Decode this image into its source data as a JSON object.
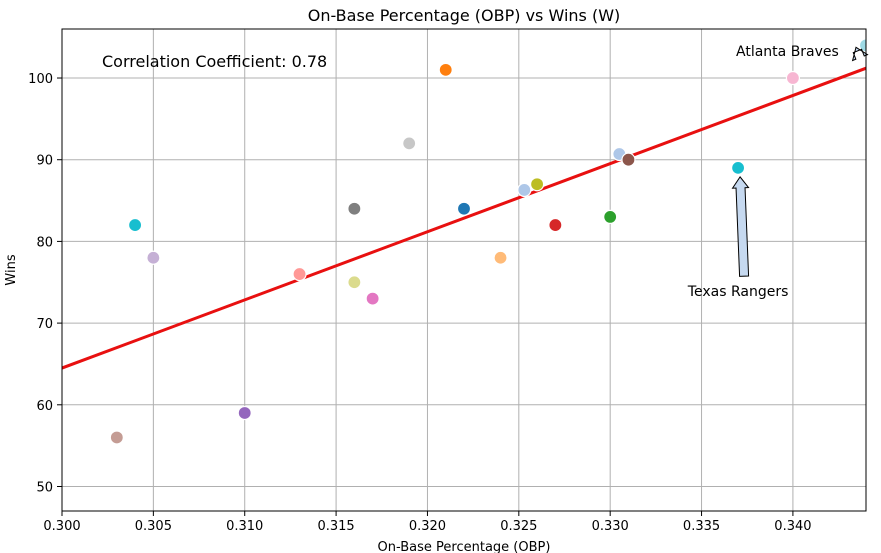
{
  "chart_data": {
    "type": "scatter",
    "title": "On-Base Percentage (OBP) vs Wins (W)",
    "xlabel": "On-Base Percentage (OBP)",
    "ylabel": "Wins",
    "xlim": [
      0.3,
      0.344
    ],
    "ylim": [
      47,
      106
    ],
    "xticks": [
      0.3,
      0.305,
      0.31,
      0.315,
      0.32,
      0.325,
      0.33,
      0.335,
      0.34
    ],
    "xtick_labels": [
      "0.300",
      "0.305",
      "0.310",
      "0.315",
      "0.320",
      "0.325",
      "0.330",
      "0.335",
      "0.340"
    ],
    "yticks": [
      50,
      60,
      70,
      80,
      90,
      100
    ],
    "ytick_labels": [
      "50",
      "60",
      "70",
      "80",
      "90",
      "100"
    ],
    "grid": true,
    "points": [
      {
        "x": 0.303,
        "y": 56,
        "color": "#c49c94"
      },
      {
        "x": 0.304,
        "y": 82,
        "color": "#17becf"
      },
      {
        "x": 0.305,
        "y": 78,
        "color": "#c5b0d5"
      },
      {
        "x": 0.31,
        "y": 59,
        "color": "#9467bd"
      },
      {
        "x": 0.313,
        "y": 76,
        "color": "#ff9896"
      },
      {
        "x": 0.316,
        "y": 84,
        "color": "#7f7f7f"
      },
      {
        "x": 0.316,
        "y": 75,
        "color": "#dbdb8d"
      },
      {
        "x": 0.317,
        "y": 73,
        "color": "#e377c2"
      },
      {
        "x": 0.319,
        "y": 92,
        "color": "#c7c7c7"
      },
      {
        "x": 0.321,
        "y": 101,
        "color": "#ff7f0e"
      },
      {
        "x": 0.322,
        "y": 84,
        "color": "#1f77b4"
      },
      {
        "x": 0.324,
        "y": 78,
        "color": "#ffbb78"
      },
      {
        "x": 0.3253,
        "y": 86.3,
        "color": "#aec7e8"
      },
      {
        "x": 0.326,
        "y": 87,
        "color": "#bcbd22"
      },
      {
        "x": 0.327,
        "y": 82,
        "color": "#d62728"
      },
      {
        "x": 0.33,
        "y": 83,
        "color": "#2ca02c"
      },
      {
        "x": 0.3305,
        "y": 90.7,
        "color": "#aec7e8"
      },
      {
        "x": 0.331,
        "y": 90,
        "color": "#8c564b"
      },
      {
        "x": 0.337,
        "y": 89,
        "color": "#17becf"
      },
      {
        "x": 0.34,
        "y": 100,
        "color": "#f7b6d2"
      },
      {
        "x": 0.344,
        "y": 104,
        "color": "#9edae5"
      }
    ],
    "regression_line": {
      "color": "#e81010",
      "x": [
        0.3,
        0.344
      ],
      "y": [
        64.5,
        101.2
      ]
    },
    "correlation_text": "Correlation Coefficient: 0.78",
    "annotations": [
      {
        "text": "Atlanta Braves",
        "x": 0.344,
        "y": 104,
        "text_x": 0.3397,
        "text_y": 102.7
      },
      {
        "text": "Texas Rangers",
        "x": 0.337,
        "y": 89,
        "text_x": 0.337,
        "text_y": 73.3
      }
    ],
    "colors": {
      "grid": "#b0b0b0",
      "arrow_fill": "#c6d9f0"
    }
  }
}
